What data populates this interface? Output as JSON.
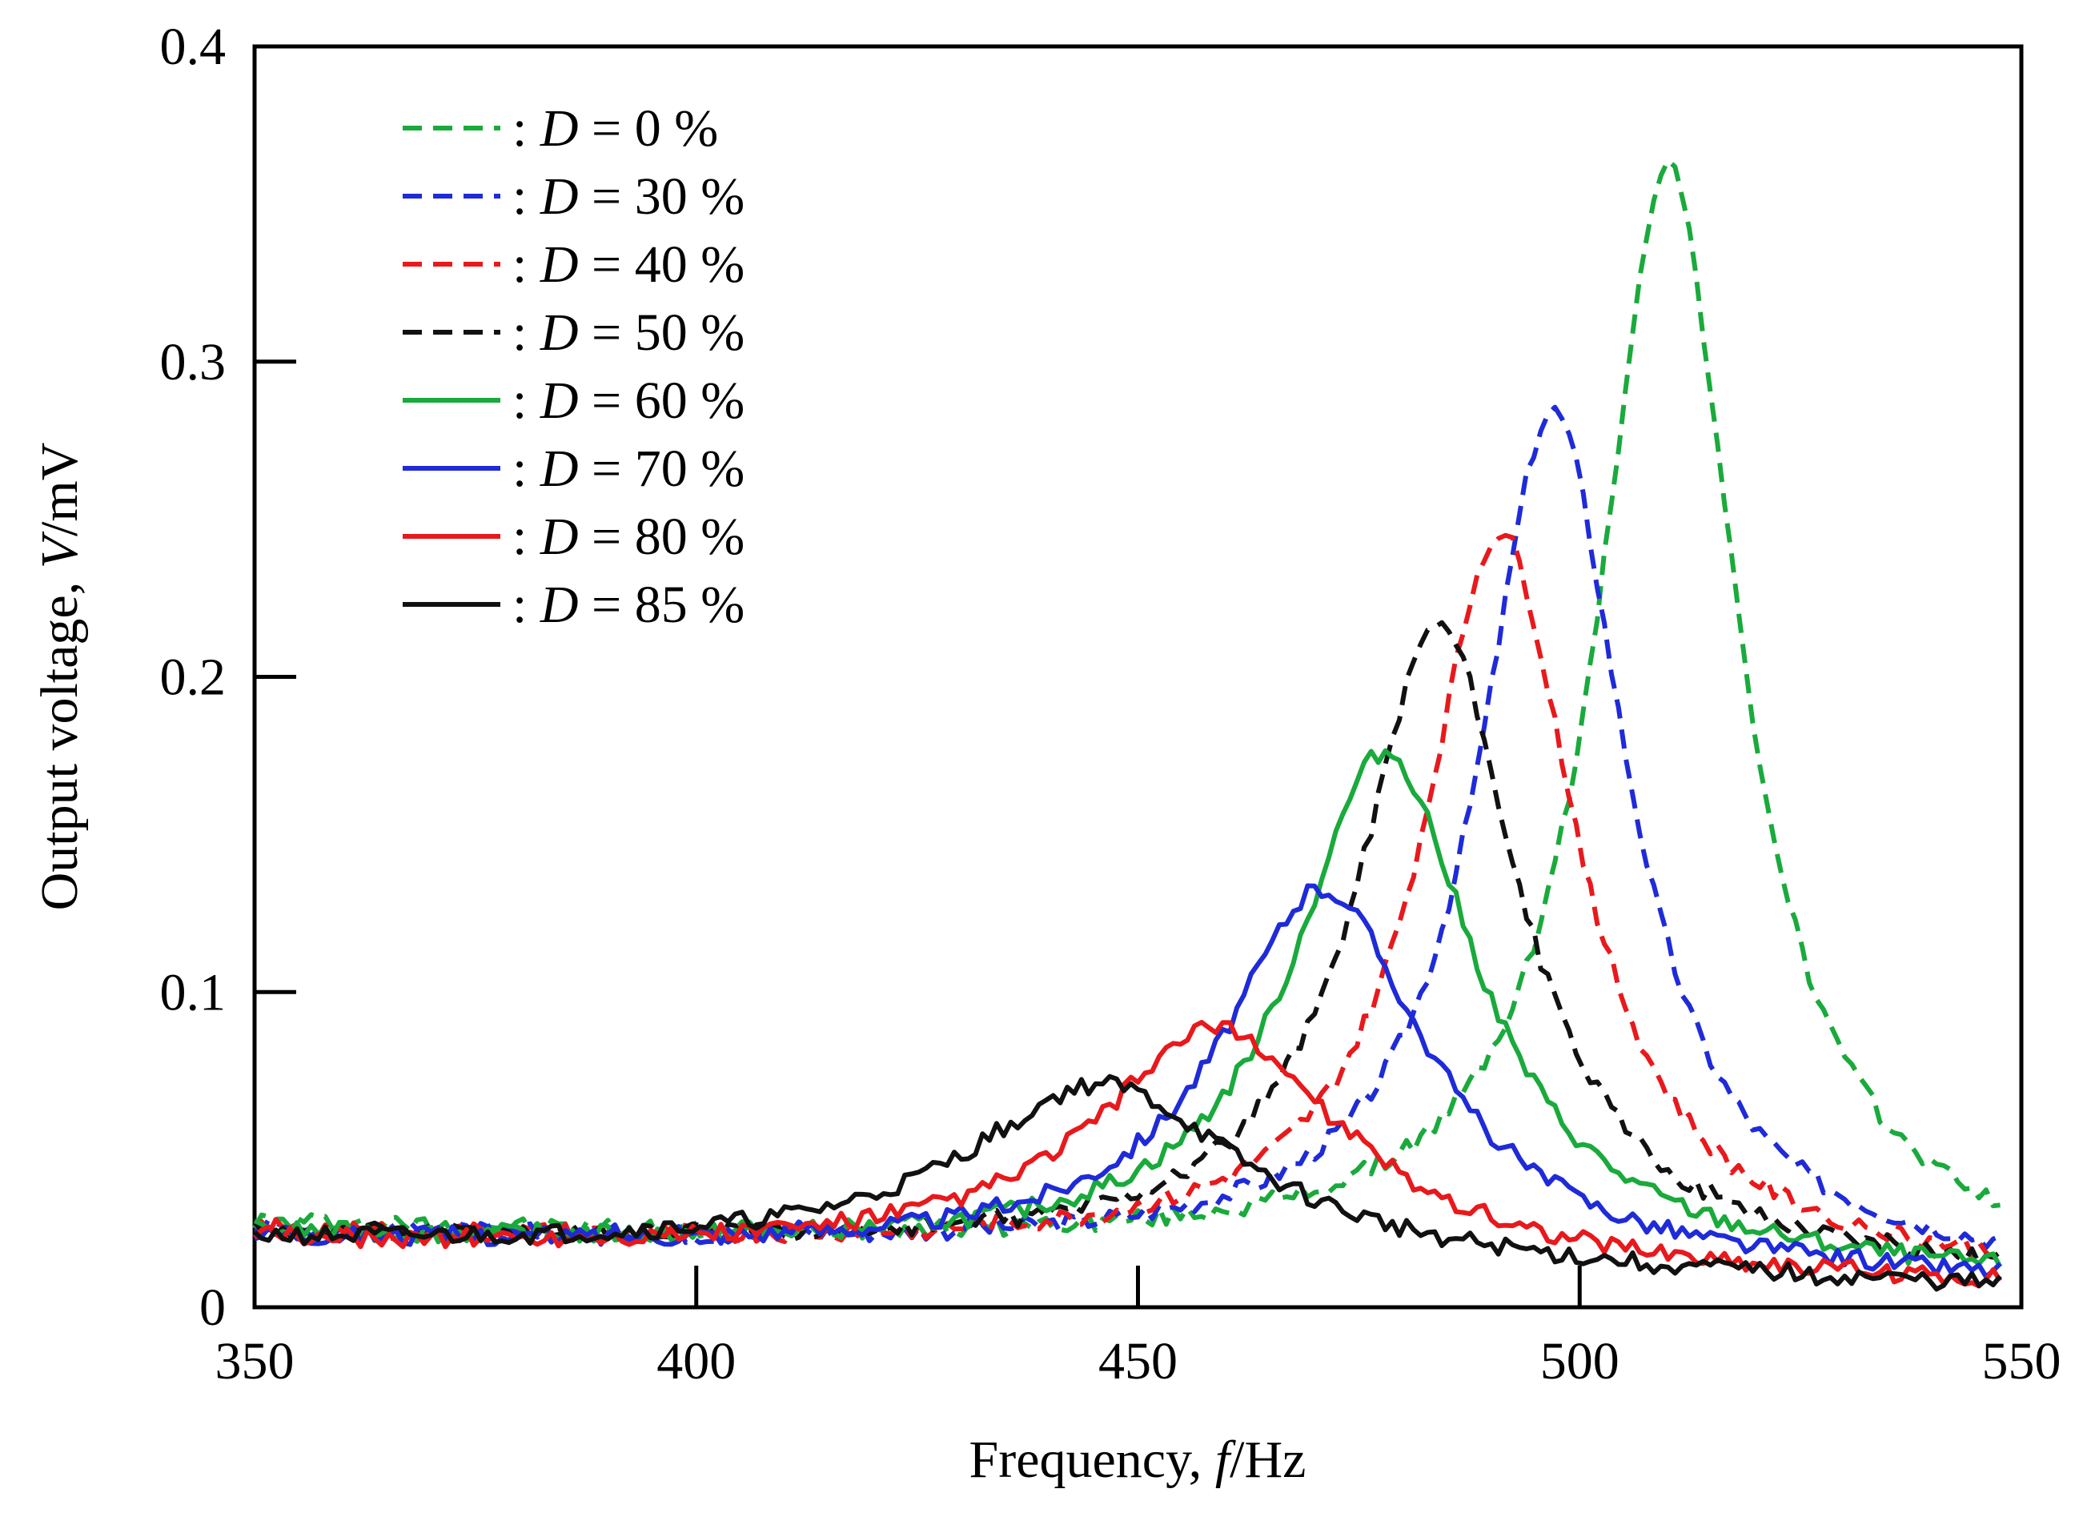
{
  "chart_data": {
    "type": "line",
    "title": "",
    "xlabel_parts": [
      "Frequency, ",
      "f",
      "/Hz"
    ],
    "ylabel_parts": [
      "Output voltage, ",
      "V",
      "/mV"
    ],
    "xlim": [
      350,
      550
    ],
    "ylim": [
      0,
      0.4
    ],
    "xticks": [
      "350",
      "400",
      "450",
      "500",
      "550"
    ],
    "yticks": [
      "0",
      "0.1",
      "0.2",
      "0.3",
      "0.4"
    ],
    "xtick_values": [
      350,
      400,
      450,
      500,
      550
    ],
    "ytick_values": [
      0,
      0.1,
      0.2,
      0.3,
      0.4
    ],
    "grid": false,
    "legend_position": "top-left",
    "series": [
      {
        "name": "D = 0 %",
        "prefix": ": ",
        "var": "D",
        "suffix": " = 0 %",
        "color": "#1aaa3c",
        "dashed": true,
        "peak_f": 510,
        "peak_v": 0.345,
        "base": 0.024,
        "width": 9.5
      },
      {
        "name": "D = 30 %",
        "prefix": ": ",
        "var": "D",
        "suffix": " = 30 %",
        "color": "#1f2bd8",
        "dashed": true,
        "peak_f": 497,
        "peak_v": 0.268,
        "base": 0.022,
        "width": 10
      },
      {
        "name": "D = 40 %",
        "prefix": ": ",
        "var": "D",
        "suffix": " = 40 %",
        "color": "#e8191c",
        "dashed": true,
        "peak_f": 491,
        "peak_v": 0.229,
        "base": 0.022,
        "width": 10.5
      },
      {
        "name": "D = 50 %",
        "prefix": ": ",
        "var": "D",
        "suffix": " = 50 %",
        "color": "#111111",
        "dashed": true,
        "peak_f": 484,
        "peak_v": 0.2,
        "base": 0.022,
        "width": 11
      },
      {
        "name": "D = 60 %",
        "prefix": ": ",
        "var": "D",
        "suffix": " = 60 %",
        "color": "#1aaa3c",
        "dashed": false,
        "peak_f": 478,
        "peak_v": 0.16,
        "base": 0.021,
        "width": 12.5
      },
      {
        "name": "D = 70 %",
        "prefix": ": ",
        "var": "D",
        "suffix": " = 70 %",
        "color": "#1f2bd8",
        "dashed": false,
        "peak_f": 471,
        "peak_v": 0.117,
        "base": 0.02,
        "width": 14
      },
      {
        "name": "D = 80 %",
        "prefix": ": ",
        "var": "D",
        "suffix": " = 80 %",
        "color": "#e8191c",
        "dashed": false,
        "peak_f": 459,
        "peak_v": 0.073,
        "base": 0.019,
        "width": 17
      },
      {
        "name": "D = 85 %",
        "prefix": ": ",
        "var": "D",
        "suffix": " = 85 %",
        "color": "#111111",
        "dashed": false,
        "peak_f": 446,
        "peak_v": 0.055,
        "base": 0.019,
        "width": 19
      }
    ]
  }
}
